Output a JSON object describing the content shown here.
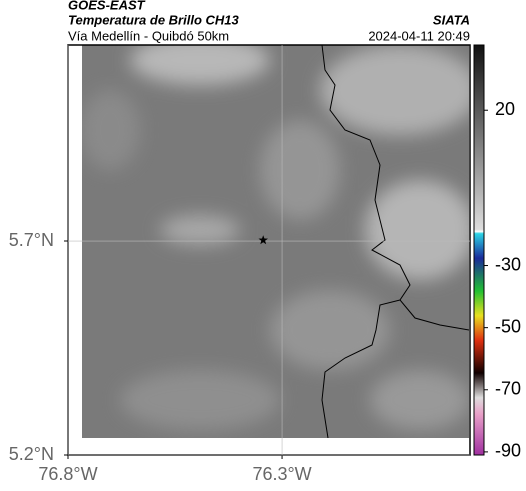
{
  "header": {
    "satellite": "GOES-EAST",
    "product": "Temperatura de Brillo CH13",
    "region": "Vía Medellín - Quibdó 50km",
    "source": "SIATA",
    "datetime": "2024-04-11 20:49"
  },
  "map": {
    "lonlim": [
      -76.8,
      -75.861
    ],
    "latlim": [
      5.2,
      6.158
    ],
    "xticks": [
      {
        "value": -76.8,
        "label": "76.8°W"
      },
      {
        "value": -76.3,
        "label": "76.3°W"
      }
    ],
    "yticks": [
      {
        "value": 5.7,
        "label": "5.7°N"
      },
      {
        "value": 5.2,
        "label": "5.2°N"
      }
    ],
    "marker": {
      "lon": -76.344,
      "lat": 5.702
    }
  },
  "colorbar": {
    "lim": [
      -91,
      41
    ],
    "ticks": [
      20,
      -30,
      -50,
      -70,
      -90
    ]
  }
}
